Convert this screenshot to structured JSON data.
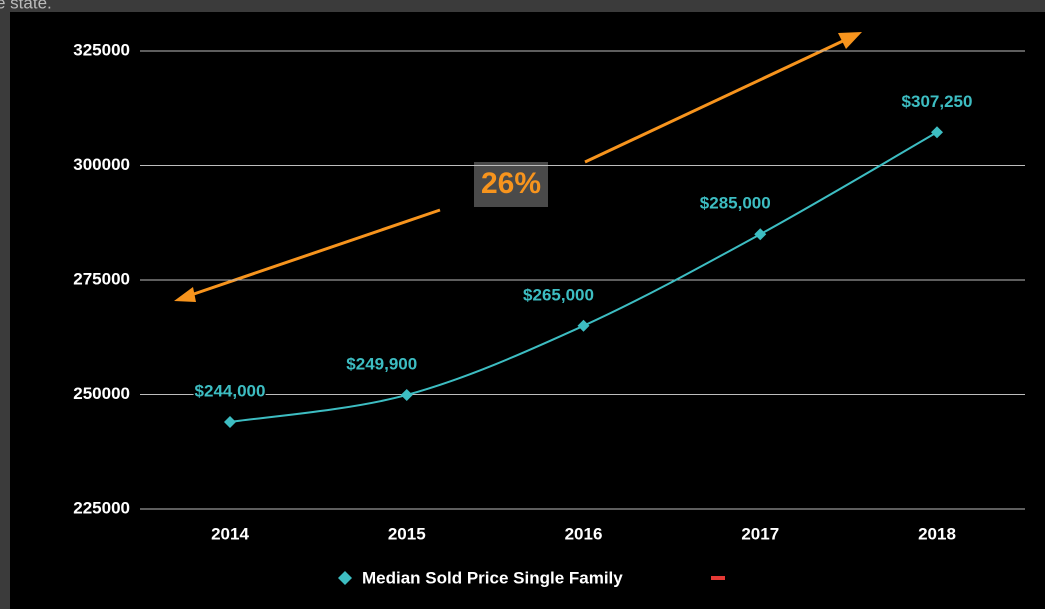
{
  "top_text": "e state.",
  "chart_data": {
    "type": "line",
    "categories": [
      "2014",
      "2015",
      "2016",
      "2017",
      "2018"
    ],
    "series": [
      {
        "name": "Median Sold Price Single Family",
        "color": "#3dbdc2",
        "values": [
          244000,
          249900,
          265000,
          285000,
          307250
        ],
        "value_labels": [
          "$244,000",
          "$249,900",
          "$265,000",
          "$285,000",
          "$307,250"
        ]
      }
    ],
    "ylim": [
      225000,
      325000
    ],
    "yticks": [
      225000,
      250000,
      275000,
      300000,
      325000
    ],
    "grid": true,
    "legend": "bottom",
    "annotation": "26%"
  }
}
